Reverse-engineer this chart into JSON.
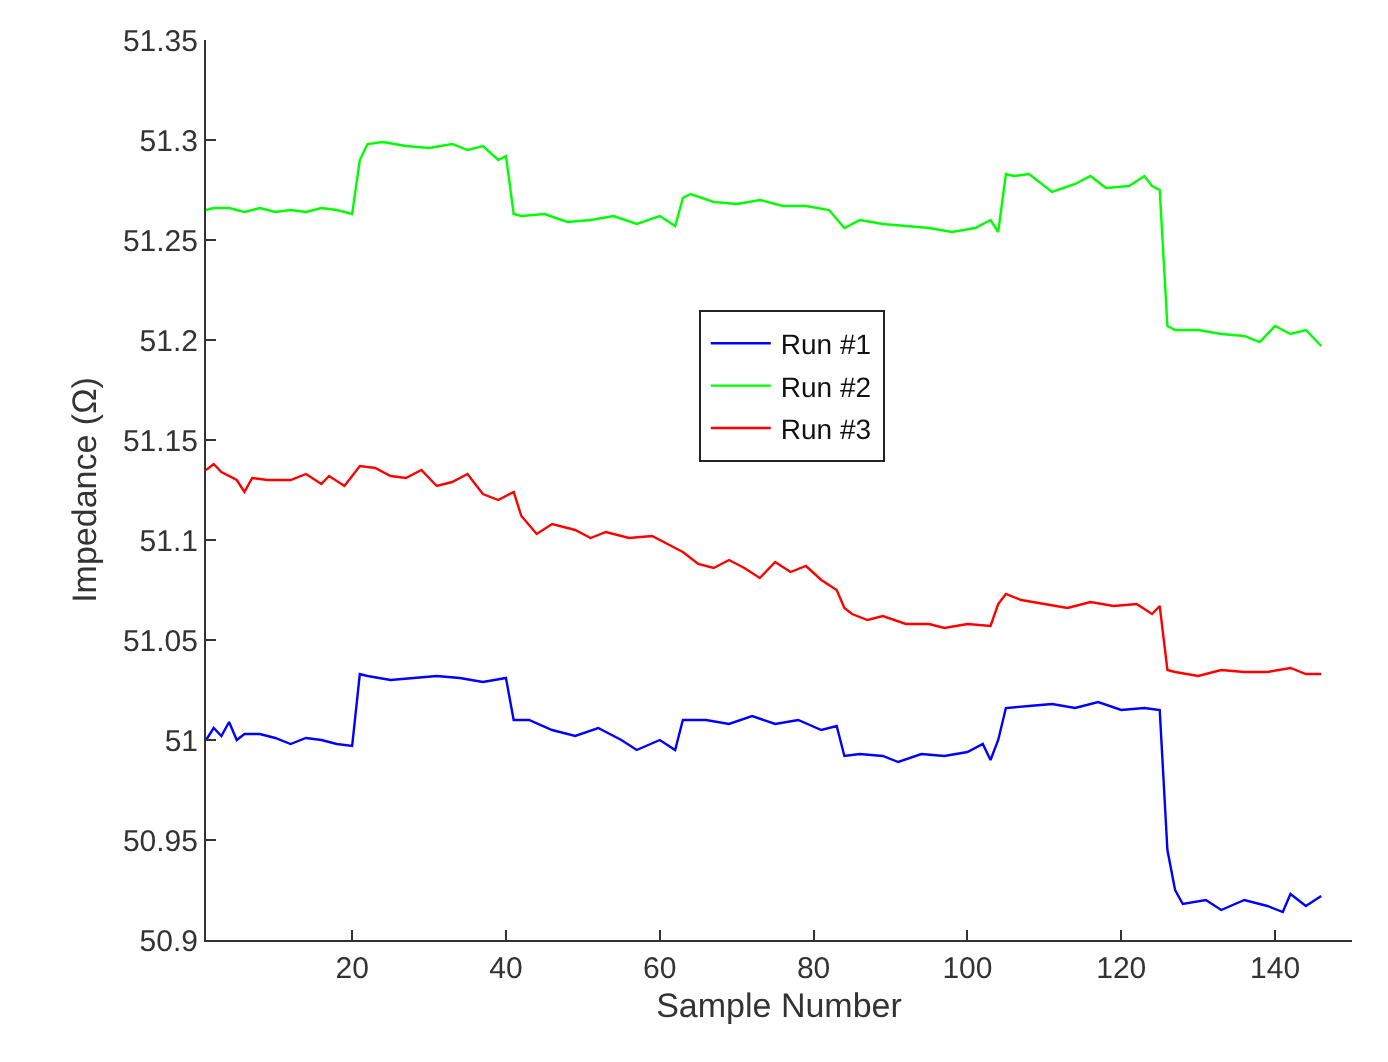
{
  "chart_data": {
    "type": "line",
    "xlabel": "Sample Number",
    "ylabel": "Impedance (Ω)",
    "xlim": [
      1,
      150
    ],
    "ylim": [
      50.9,
      51.35
    ],
    "xticks": [
      20,
      40,
      60,
      80,
      100,
      120,
      140
    ],
    "yticks": [
      50.9,
      50.95,
      51,
      51.05,
      51.1,
      51.15,
      51.2,
      51.25,
      51.3,
      51.35
    ],
    "grid": false,
    "legend": "center",
    "line_style": "solid",
    "marker": "none",
    "series": [
      {
        "name": "Run #1",
        "color": "#0000ff",
        "x": [
          1,
          2,
          3,
          4,
          5,
          6,
          8,
          10,
          12,
          14,
          16,
          18,
          20,
          21,
          22,
          25,
          28,
          31,
          34,
          37,
          40,
          41,
          43,
          46,
          49,
          52,
          55,
          57,
          60,
          62,
          63,
          66,
          69,
          72,
          75,
          78,
          81,
          83,
          84,
          86,
          89,
          91,
          94,
          97,
          100,
          102,
          103,
          104,
          105,
          108,
          111,
          114,
          117,
          120,
          123,
          125,
          126,
          127,
          128,
          131,
          133,
          136,
          139,
          141,
          142,
          144,
          146
        ],
        "values": [
          51.0,
          51.006,
          51.002,
          51.009,
          51.0,
          51.003,
          51.003,
          51.001,
          50.998,
          51.001,
          51.0,
          50.998,
          50.997,
          51.033,
          51.032,
          51.03,
          51.031,
          51.032,
          51.031,
          51.029,
          51.031,
          51.01,
          51.01,
          51.005,
          51.002,
          51.006,
          51.0,
          50.995,
          51.0,
          50.995,
          51.01,
          51.01,
          51.008,
          51.012,
          51.008,
          51.01,
          51.005,
          51.007,
          50.992,
          50.993,
          50.992,
          50.989,
          50.993,
          50.992,
          50.994,
          50.998,
          50.99,
          51.0,
          51.016,
          51.017,
          51.018,
          51.016,
          51.019,
          51.015,
          51.016,
          51.015,
          50.945,
          50.925,
          50.918,
          50.92,
          50.915,
          50.92,
          50.917,
          50.914,
          50.923,
          50.917,
          50.922
        ]
      },
      {
        "name": "Run #2",
        "color": "#00ff00",
        "x": [
          1,
          2,
          4,
          6,
          8,
          10,
          12,
          14,
          16,
          18,
          20,
          21,
          22,
          24,
          27,
          30,
          33,
          35,
          37,
          39,
          40,
          41,
          42,
          45,
          48,
          51,
          54,
          57,
          60,
          62,
          63,
          64,
          67,
          70,
          73,
          76,
          79,
          82,
          84,
          86,
          89,
          92,
          95,
          98,
          101,
          103,
          104,
          105,
          106,
          108,
          111,
          114,
          116,
          118,
          121,
          123,
          124,
          125,
          126,
          127,
          130,
          133,
          136,
          138,
          140,
          142,
          144,
          146
        ],
        "values": [
          51.265,
          51.266,
          51.266,
          51.264,
          51.266,
          51.264,
          51.265,
          51.264,
          51.266,
          51.265,
          51.263,
          51.29,
          51.298,
          51.299,
          51.297,
          51.296,
          51.298,
          51.295,
          51.297,
          51.29,
          51.292,
          51.263,
          51.262,
          51.263,
          51.259,
          51.26,
          51.262,
          51.258,
          51.262,
          51.257,
          51.271,
          51.273,
          51.269,
          51.268,
          51.27,
          51.267,
          51.267,
          51.265,
          51.256,
          51.26,
          51.258,
          51.257,
          51.256,
          51.254,
          51.256,
          51.26,
          51.254,
          51.283,
          51.282,
          51.283,
          51.274,
          51.278,
          51.282,
          51.276,
          51.277,
          51.282,
          51.277,
          51.275,
          51.207,
          51.205,
          51.205,
          51.203,
          51.202,
          51.199,
          51.207,
          51.203,
          51.205,
          51.197
        ]
      },
      {
        "name": "Run #3",
        "color": "#ff0000",
        "x": [
          1,
          2,
          3,
          5,
          6,
          7,
          9,
          12,
          14,
          16,
          17,
          19,
          21,
          23,
          25,
          27,
          29,
          31,
          33,
          35,
          37,
          39,
          41,
          42,
          44,
          46,
          49,
          51,
          53,
          56,
          59,
          62,
          63,
          65,
          67,
          69,
          71,
          73,
          75,
          77,
          79,
          81,
          83,
          84,
          85,
          87,
          89,
          92,
          95,
          97,
          100,
          103,
          104,
          105,
          107,
          110,
          113,
          116,
          119,
          122,
          124,
          125,
          126,
          127,
          130,
          133,
          136,
          139,
          142,
          144,
          146
        ],
        "values": [
          51.135,
          51.138,
          51.134,
          51.13,
          51.124,
          51.131,
          51.13,
          51.13,
          51.133,
          51.128,
          51.132,
          51.127,
          51.137,
          51.136,
          51.132,
          51.131,
          51.135,
          51.127,
          51.129,
          51.133,
          51.123,
          51.12,
          51.124,
          51.112,
          51.103,
          51.108,
          51.105,
          51.101,
          51.104,
          51.101,
          51.102,
          51.096,
          51.094,
          51.088,
          51.086,
          51.09,
          51.086,
          51.081,
          51.089,
          51.084,
          51.087,
          51.08,
          51.075,
          51.066,
          51.063,
          51.06,
          51.062,
          51.058,
          51.058,
          51.056,
          51.058,
          51.057,
          51.068,
          51.073,
          51.07,
          51.068,
          51.066,
          51.069,
          51.067,
          51.068,
          51.063,
          51.067,
          51.035,
          51.034,
          51.032,
          51.035,
          51.034,
          51.034,
          51.036,
          51.033,
          51.033
        ]
      }
    ]
  }
}
